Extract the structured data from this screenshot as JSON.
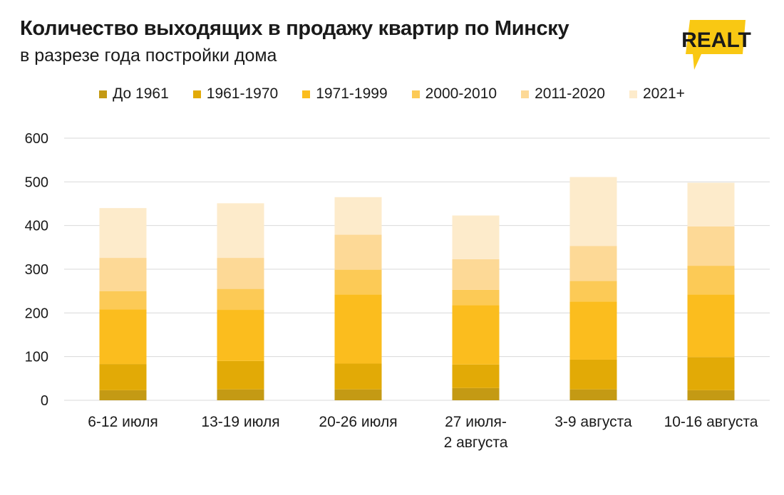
{
  "header": {
    "title": "Количество выходящих в продажу квартир по Минску",
    "subtitle": "в разрезе года постройки дома"
  },
  "logo": {
    "text": "REALT",
    "color": "#f9c813"
  },
  "chart_data": {
    "type": "bar",
    "stacked": true,
    "categories": [
      [
        "6-12 июля"
      ],
      [
        "13-19 июля"
      ],
      [
        "20-26 июля"
      ],
      [
        "27 июля-",
        "2 августа"
      ],
      [
        "3-9 августа"
      ],
      [
        "10-16 августа"
      ]
    ],
    "series": [
      {
        "name": "До 1961",
        "color": "#c49a14",
        "values": [
          23,
          25,
          25,
          28,
          25,
          23
        ]
      },
      {
        "name": "1961-1970",
        "color": "#e2aa06",
        "values": [
          60,
          65,
          59,
          54,
          68,
          76
        ]
      },
      {
        "name": "1971-1999",
        "color": "#fbbd1e",
        "values": [
          125,
          117,
          158,
          136,
          133,
          143
        ]
      },
      {
        "name": "2000-2010",
        "color": "#fcca56",
        "values": [
          42,
          48,
          57,
          35,
          47,
          66
        ]
      },
      {
        "name": "2011-2020",
        "color": "#fdd996",
        "values": [
          76,
          71,
          80,
          70,
          80,
          90
        ]
      },
      {
        "name": "2021+",
        "color": "#fdebcb",
        "values": [
          114,
          125,
          86,
          100,
          158,
          100
        ]
      }
    ],
    "yticks": [
      0,
      100,
      200,
      300,
      400,
      500,
      600
    ],
    "ylim": [
      0,
      600
    ],
    "grid": true,
    "legend_position": "top"
  }
}
